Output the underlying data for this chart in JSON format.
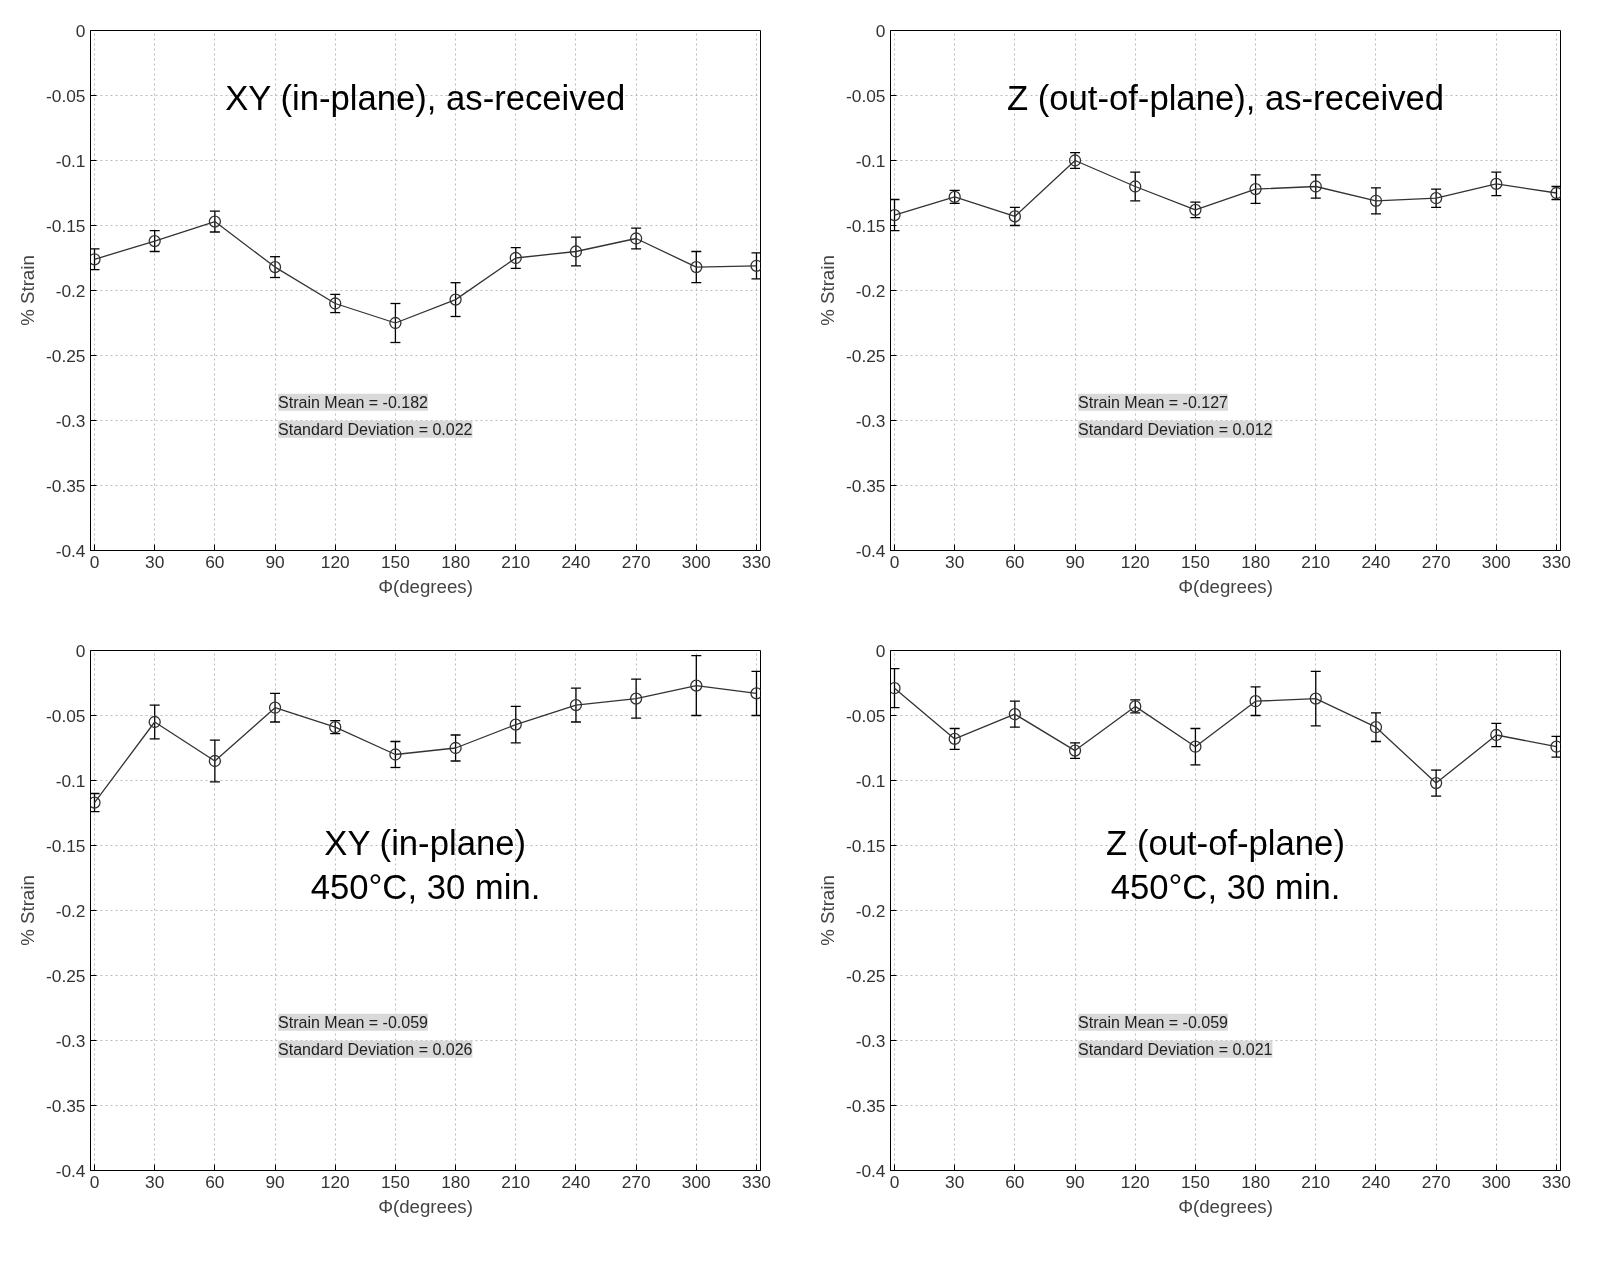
{
  "chart_data": [
    {
      "type": "line",
      "xlabel": "Φ(degrees)",
      "ylabel": "% Strain",
      "x": [
        0,
        30,
        60,
        90,
        120,
        150,
        180,
        210,
        240,
        270,
        300,
        330
      ],
      "xlim": [
        -2,
        332
      ],
      "ylim": [
        -0.4,
        0
      ],
      "xticks": [
        0,
        30,
        60,
        90,
        120,
        150,
        180,
        210,
        240,
        270,
        300,
        330
      ],
      "yticks": [
        -0.4,
        -0.35,
        -0.3,
        -0.25,
        -0.2,
        -0.15,
        -0.1,
        -0.05,
        0
      ],
      "grid": true,
      "marker": "circle",
      "line_style": "solid",
      "series": [
        {
          "color": "#333333",
          "values": [
            -0.176,
            -0.162,
            -0.147,
            -0.182,
            -0.21,
            -0.225,
            -0.207,
            -0.175,
            -0.17,
            -0.16,
            -0.182,
            -0.181
          ],
          "errors": [
            0.008,
            0.008,
            0.008,
            0.008,
            0.007,
            0.015,
            0.013,
            0.008,
            0.011,
            0.008,
            0.012,
            0.01
          ]
        }
      ],
      "annotations": [
        "XY (in-plane), as-received",
        "Strain Mean = -0.182",
        "Standard Deviation = 0.022"
      ]
    },
    {
      "type": "line",
      "xlabel": "Φ(degrees)",
      "ylabel": "% Strain",
      "x": [
        0,
        30,
        60,
        90,
        120,
        150,
        180,
        210,
        240,
        270,
        300,
        330
      ],
      "xlim": [
        -2,
        332
      ],
      "ylim": [
        -0.4,
        0
      ],
      "xticks": [
        0,
        30,
        60,
        90,
        120,
        150,
        180,
        210,
        240,
        270,
        300,
        330
      ],
      "yticks": [
        -0.4,
        -0.35,
        -0.3,
        -0.25,
        -0.2,
        -0.15,
        -0.1,
        -0.05,
        0
      ],
      "grid": true,
      "marker": "circle",
      "line_style": "solid",
      "series": [
        {
          "color": "#333333",
          "values": [
            -0.142,
            -0.128,
            -0.143,
            -0.1,
            -0.12,
            -0.138,
            -0.122,
            -0.12,
            -0.131,
            -0.129,
            -0.118,
            -0.125
          ],
          "errors": [
            0.012,
            0.005,
            0.007,
            0.006,
            0.011,
            0.006,
            0.011,
            0.009,
            0.01,
            0.007,
            0.009,
            0.005
          ]
        }
      ],
      "annotations": [
        "Z (out-of-plane), as-received",
        "Strain Mean = -0.127",
        "Standard Deviation = 0.012"
      ]
    },
    {
      "type": "line",
      "xlabel": "Φ(degrees)",
      "ylabel": "% Strain",
      "x": [
        0,
        30,
        60,
        90,
        120,
        150,
        180,
        210,
        240,
        270,
        300,
        330
      ],
      "xlim": [
        -2,
        332
      ],
      "ylim": [
        -0.4,
        0
      ],
      "xticks": [
        0,
        30,
        60,
        90,
        120,
        150,
        180,
        210,
        240,
        270,
        300,
        330
      ],
      "yticks": [
        -0.4,
        -0.35,
        -0.3,
        -0.25,
        -0.2,
        -0.15,
        -0.1,
        -0.05,
        0
      ],
      "grid": true,
      "marker": "circle",
      "line_style": "solid",
      "series": [
        {
          "color": "#333333",
          "values": [
            -0.117,
            -0.055,
            -0.085,
            -0.044,
            -0.059,
            -0.08,
            -0.075,
            -0.057,
            -0.042,
            -0.037,
            -0.027,
            -0.033
          ],
          "errors": [
            0.007,
            0.013,
            0.016,
            0.011,
            0.005,
            0.01,
            0.01,
            0.014,
            0.013,
            0.015,
            0.023,
            0.017
          ]
        }
      ],
      "annotations": [
        "XY (in-plane)",
        "450°C, 30 min.",
        "Strain Mean = -0.059",
        "Standard Deviation = 0.026"
      ]
    },
    {
      "type": "line",
      "xlabel": "Φ(degrees)",
      "ylabel": "% Strain",
      "x": [
        0,
        30,
        60,
        90,
        120,
        150,
        180,
        210,
        240,
        270,
        300,
        330
      ],
      "xlim": [
        -2,
        332
      ],
      "ylim": [
        -0.4,
        0
      ],
      "xticks": [
        0,
        30,
        60,
        90,
        120,
        150,
        180,
        210,
        240,
        270,
        300,
        330
      ],
      "yticks": [
        -0.4,
        -0.35,
        -0.3,
        -0.25,
        -0.2,
        -0.15,
        -0.1,
        -0.05,
        0
      ],
      "grid": true,
      "marker": "circle",
      "line_style": "solid",
      "series": [
        {
          "color": "#333333",
          "values": [
            -0.029,
            -0.068,
            -0.049,
            -0.077,
            -0.043,
            -0.074,
            -0.039,
            -0.037,
            -0.059,
            -0.102,
            -0.065,
            -0.074
          ],
          "errors": [
            0.015,
            0.008,
            0.01,
            0.006,
            0.005,
            0.014,
            0.011,
            0.021,
            0.011,
            0.01,
            0.009,
            0.008
          ]
        }
      ],
      "annotations": [
        "Z (out-of-plane)",
        "450°C, 30 min.",
        "Strain Mean = -0.059",
        "Standard Deviation = 0.021"
      ]
    }
  ]
}
